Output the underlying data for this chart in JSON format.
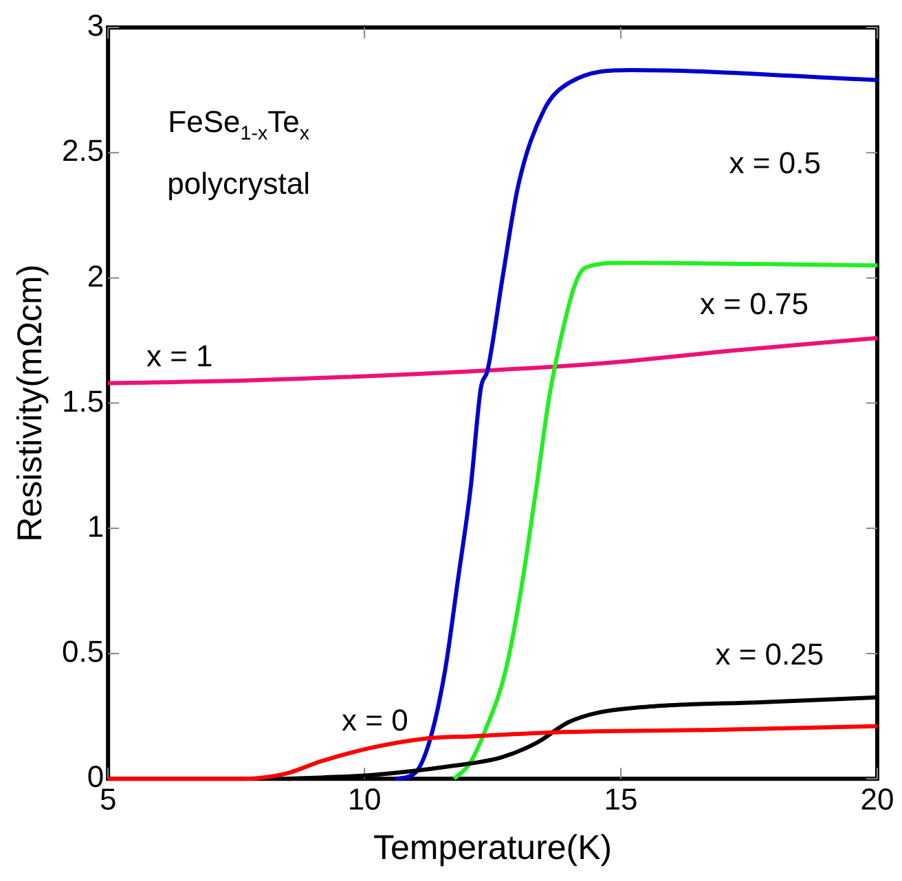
{
  "chart_data": {
    "type": "line",
    "xlabel": "Temperature(K)",
    "ylabel": "Resistivity(mΩcm)",
    "xlim": [
      5,
      20
    ],
    "xticks": [
      5,
      10,
      15,
      20
    ],
    "ylim": [
      0,
      3
    ],
    "yticks": [
      0,
      0.5,
      1,
      1.5,
      2,
      2.5,
      3
    ],
    "grid": false,
    "legend": false,
    "series": [
      {
        "name": "x = 0",
        "color": "#ff0000",
        "x": [
          5,
          7.66,
          8.46,
          9.16,
          10.16,
          11.17,
          12.17,
          13.7,
          16.7,
          20
        ],
        "values": [
          0,
          0,
          0.02,
          0.07,
          0.125,
          0.16,
          0.17,
          0.185,
          0.195,
          0.21
        ]
      },
      {
        "name": "x = 0.25",
        "color": "#000000",
        "x": [
          8.5,
          9.16,
          10.16,
          11.67,
          12.67,
          13.37,
          13.97,
          14.58,
          15.68,
          17.7,
          20
        ],
        "values": [
          0,
          0.005,
          0.015,
          0.05,
          0.085,
          0.145,
          0.225,
          0.265,
          0.29,
          0.305,
          0.325
        ]
      },
      {
        "name": "x = 0.5",
        "color": "#0000cc",
        "x": [
          10.6,
          10.97,
          11.27,
          11.57,
          11.82,
          12.07,
          12.27,
          12.4,
          12.7,
          13,
          13.5,
          14,
          15.2,
          20
        ],
        "values": [
          0,
          0.02,
          0.15,
          0.43,
          0.79,
          1.16,
          1.56,
          1.63,
          2.01,
          2.37,
          2.67,
          2.78,
          2.83,
          2.79
        ]
      },
      {
        "name": "x = 0.75",
        "color": "#22ee22",
        "x": [
          11.75,
          12.05,
          12.35,
          12.75,
          13.05,
          13.35,
          13.6,
          13.8,
          14.1,
          14.3,
          15,
          20
        ],
        "values": [
          0,
          0.06,
          0.19,
          0.43,
          0.75,
          1.16,
          1.52,
          1.73,
          1.97,
          2.04,
          2.06,
          2.05
        ]
      },
      {
        "name": "x = 1",
        "color": "#ee1177",
        "x": [
          5,
          7.66,
          12.37,
          14.7,
          17.2,
          20
        ],
        "values": [
          1.58,
          1.59,
          1.63,
          1.66,
          1.71,
          1.76
        ]
      }
    ],
    "annotations": [
      "FeSe$_{1-x}$Te$_{x}$",
      "polycrystal"
    ]
  }
}
